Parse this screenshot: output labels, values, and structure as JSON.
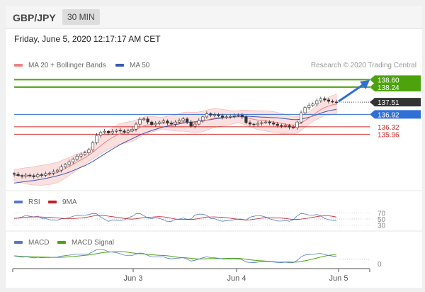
{
  "header": {
    "symbol": "GBP/JPY",
    "timeframe": "30 MIN"
  },
  "datetime": "Friday, June 5, 2020 12:17:17 AM CET",
  "legend": {
    "ma20": "MA 20 + Bollinger Bands",
    "ma50": "MA 50",
    "rsi": "RSI",
    "rsi_ma": "9MA",
    "macd": "MACD",
    "macd_signal": "MACD Signal"
  },
  "credit": "Research © 2020 Trading Central",
  "colors": {
    "ma20": "#f08080",
    "ma50": "#3a5ab0",
    "green": "#4ca30d",
    "blue_level": "#2f6fd6",
    "red_level": "#cc2a2a",
    "current": "#333333",
    "rsi": "#5578c8",
    "rsi_ma": "#c0202a",
    "macd": "#5578c8",
    "signal": "#4ca30d"
  },
  "chart_data": [
    {
      "type": "candlestick",
      "x_labels": [
        "Jun 3",
        "Jun 4",
        "Jun 5"
      ],
      "levels": [
        {
          "value": 138.6,
          "label": "138.60",
          "kind": "resistance"
        },
        {
          "value": 138.24,
          "label": "138.24",
          "kind": "resistance"
        },
        {
          "value": 137.51,
          "label": "137.51",
          "kind": "current"
        },
        {
          "value": 136.92,
          "label": "136.92",
          "kind": "pivot"
        },
        {
          "value": 136.32,
          "label": "136.32",
          "kind": "support"
        },
        {
          "value": 135.96,
          "label": "135.96",
          "kind": "support"
        }
      ],
      "close_series": [
        134.02,
        133.96,
        133.92,
        133.98,
        133.95,
        133.9,
        134.0,
        133.97,
        134.05,
        134.08,
        134.15,
        134.22,
        134.38,
        134.5,
        134.62,
        134.75,
        134.9,
        134.98,
        135.06,
        135.2,
        135.55,
        135.9,
        136.05,
        136.1,
        136.02,
        136.1,
        136.15,
        136.12,
        136.06,
        136.12,
        136.2,
        136.45,
        136.68,
        136.7,
        136.55,
        136.42,
        136.48,
        136.55,
        136.6,
        136.5,
        136.45,
        136.55,
        136.62,
        136.7,
        136.55,
        136.35,
        136.45,
        136.62,
        136.8,
        136.95,
        136.88,
        136.9,
        136.85,
        136.78,
        136.8,
        136.82,
        136.86,
        136.88,
        136.8,
        136.52,
        136.45,
        136.42,
        136.48,
        136.52,
        136.55,
        136.5,
        136.45,
        136.38,
        136.35,
        136.38,
        136.3,
        136.28,
        136.55,
        137.0,
        137.25,
        137.35,
        137.42,
        137.58,
        137.68,
        137.62,
        137.55,
        137.52,
        137.51
      ],
      "ma20_series": [
        133.98,
        133.96,
        133.96,
        133.95,
        133.94,
        133.94,
        133.96,
        133.97,
        134.0,
        134.02,
        134.06,
        134.1,
        134.2,
        134.3,
        134.4,
        134.5,
        134.62,
        134.72,
        134.82,
        134.94,
        135.08,
        135.24,
        135.4,
        135.55,
        135.68,
        135.8,
        135.9,
        135.98,
        136.02,
        136.06,
        136.1,
        136.18,
        136.28,
        136.36,
        136.4,
        136.44,
        136.46,
        136.48,
        136.5,
        136.5,
        136.5,
        136.51,
        136.53,
        136.56,
        136.56,
        136.54,
        136.52,
        136.54,
        136.58,
        136.64,
        136.7,
        136.74,
        136.76,
        136.76,
        136.76,
        136.77,
        136.78,
        136.8,
        136.8,
        136.76,
        136.72,
        136.68,
        136.64,
        136.62,
        136.6,
        136.58,
        136.55,
        136.52,
        136.48,
        136.45,
        136.42,
        136.4,
        136.42,
        136.5,
        136.62,
        136.75,
        136.88,
        137.02,
        137.15,
        137.25,
        137.32,
        137.38,
        137.42
      ],
      "ma50_series": [
        133.6,
        133.62,
        133.65,
        133.67,
        133.7,
        133.72,
        133.75,
        133.78,
        133.82,
        133.86,
        133.9,
        133.95,
        134.0,
        134.06,
        134.12,
        134.2,
        134.28,
        134.36,
        134.44,
        134.54,
        134.64,
        134.76,
        134.88,
        135.0,
        135.12,
        135.24,
        135.35,
        135.46,
        135.56,
        135.65,
        135.74,
        135.83,
        135.92,
        136.0,
        136.07,
        136.14,
        136.2,
        136.26,
        136.31,
        136.35,
        136.39,
        136.42,
        136.46,
        136.5,
        136.52,
        136.54,
        136.56,
        136.58,
        136.61,
        136.64,
        136.67,
        136.7,
        136.72,
        136.74,
        136.76,
        136.78,
        136.8,
        136.82,
        136.83,
        136.83,
        136.82,
        136.81,
        136.8,
        136.79,
        136.78,
        136.77,
        136.76,
        136.75,
        136.73,
        136.71,
        136.69,
        136.67,
        136.67,
        136.69,
        136.73,
        136.78,
        136.84,
        136.91,
        136.98,
        137.04,
        137.09,
        137.13,
        137.16
      ],
      "ylim": [
        133.4,
        138.75
      ]
    },
    {
      "type": "line",
      "name": "RSI",
      "reference_levels": [
        70,
        50,
        30
      ],
      "ylim": [
        20,
        80
      ]
    },
    {
      "type": "line",
      "name": "MACD",
      "reference_levels": [
        0
      ]
    }
  ]
}
